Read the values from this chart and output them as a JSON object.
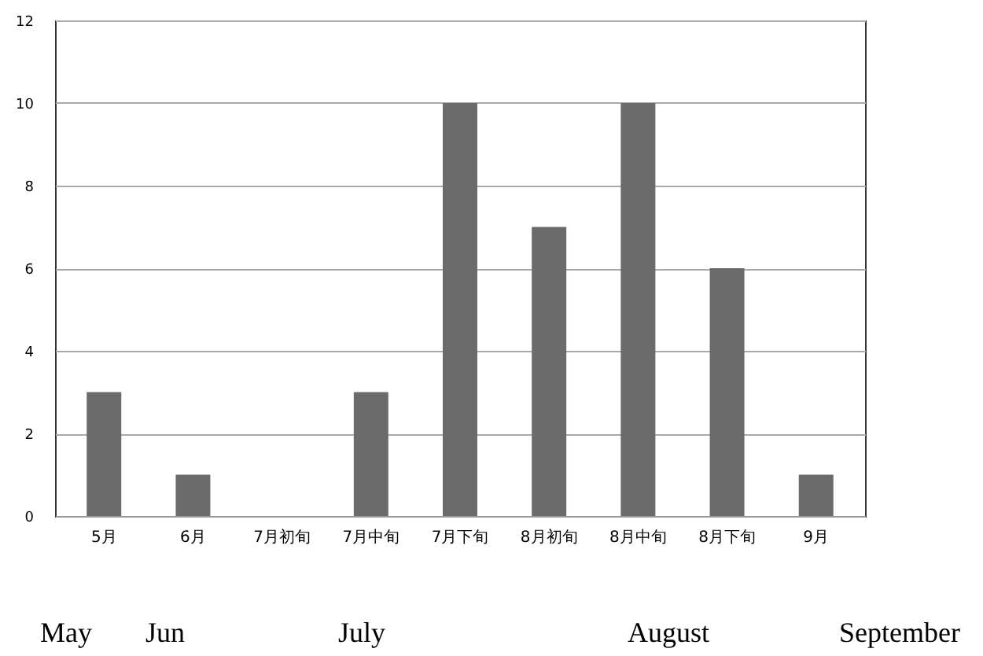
{
  "chart_data": {
    "type": "bar",
    "categories": [
      "5月",
      "6月",
      "7月初旬",
      "7月中旬",
      "7月下旬",
      "8月初旬",
      "8月中旬",
      "8月下旬",
      "9月"
    ],
    "values": [
      3,
      1,
      0,
      3,
      10,
      7,
      10,
      6,
      1
    ],
    "color": "#6b6b6b",
    "ylim": [
      0,
      12
    ],
    "yticks": [
      0,
      2,
      4,
      6,
      8,
      10,
      12
    ],
    "grid": "y",
    "annotations": [
      "May",
      "Jun",
      "July",
      "August",
      "September"
    ]
  }
}
